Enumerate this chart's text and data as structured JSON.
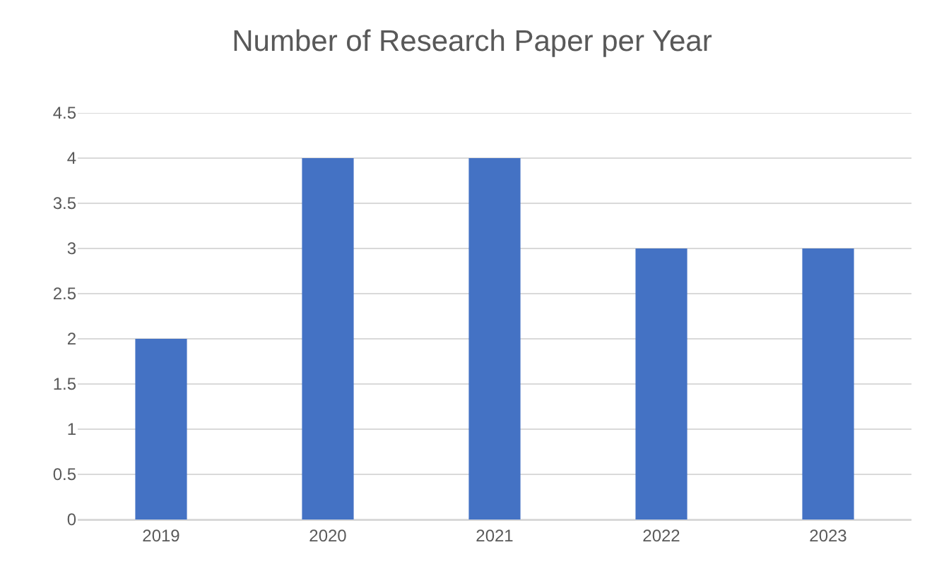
{
  "chart_data": {
    "type": "bar",
    "title": "Number of Research Paper per Year",
    "categories": [
      "2019",
      "2020",
      "2021",
      "2022",
      "2023"
    ],
    "values": [
      2,
      4,
      4,
      3,
      3
    ],
    "color": "#4472c4",
    "ylim": [
      0,
      4.5
    ],
    "yticks": [
      0,
      0.5,
      1,
      1.5,
      2,
      2.5,
      3,
      3.5,
      4,
      4.5
    ],
    "grid": "y"
  }
}
